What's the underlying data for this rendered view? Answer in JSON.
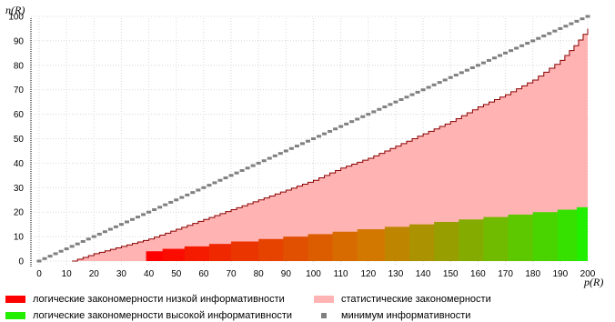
{
  "chart_data": {
    "type": "area",
    "xlabel": "p(R)",
    "ylabel": "n(R)",
    "xlim": [
      0,
      200
    ],
    "ylim": [
      0,
      100
    ],
    "x_ticks": [
      "0",
      "10",
      "20",
      "30",
      "40",
      "50",
      "60",
      "70",
      "80",
      "90",
      "100",
      "110",
      "120",
      "130",
      "140",
      "150",
      "160",
      "170",
      "180",
      "190",
      "200"
    ],
    "y_ticks": [
      "0",
      "10",
      "20",
      "30",
      "40",
      "50",
      "60",
      "70",
      "80",
      "90",
      "100"
    ],
    "grid": true,
    "legend_position": "bottom",
    "series": [
      {
        "name": "минимум информативности",
        "style": "markers",
        "color": "#808080",
        "points": [
          [
            0,
            0
          ],
          [
            200,
            100
          ]
        ]
      },
      {
        "name": "статистические закономерности",
        "style": "step-area",
        "color": "#ffb3b3",
        "edge_color": "#8b0000",
        "x": [
          12,
          20,
          30,
          40,
          50,
          60,
          70,
          80,
          90,
          100,
          110,
          120,
          130,
          140,
          150,
          160,
          170,
          180,
          190,
          195,
          200
        ],
        "upper": [
          0,
          3,
          6,
          9,
          13,
          17,
          21,
          25,
          29,
          33,
          38,
          42,
          47,
          52,
          57,
          63,
          68,
          74,
          82,
          88,
          95
        ]
      },
      {
        "name": "логические закономерности",
        "style": "staircase-bands",
        "color_low": "#ff0000",
        "color_high": "#22ee00",
        "bands": [
          {
            "x_start": 39,
            "x_end": 200,
            "height": 4
          },
          {
            "x_start": 45,
            "x_end": 200,
            "height": 5
          },
          {
            "x_start": 53,
            "x_end": 200,
            "height": 6
          },
          {
            "x_start": 62,
            "x_end": 200,
            "height": 7
          },
          {
            "x_start": 70,
            "x_end": 200,
            "height": 8
          },
          {
            "x_start": 80,
            "x_end": 200,
            "height": 9
          },
          {
            "x_start": 89,
            "x_end": 200,
            "height": 10
          },
          {
            "x_start": 98,
            "x_end": 200,
            "height": 11
          },
          {
            "x_start": 107,
            "x_end": 200,
            "height": 12
          },
          {
            "x_start": 116,
            "x_end": 200,
            "height": 13
          },
          {
            "x_start": 126,
            "x_end": 200,
            "height": 14
          },
          {
            "x_start": 135,
            "x_end": 200,
            "height": 15
          },
          {
            "x_start": 144,
            "x_end": 200,
            "height": 16
          },
          {
            "x_start": 153,
            "x_end": 200,
            "height": 17
          },
          {
            "x_start": 162,
            "x_end": 200,
            "height": 18
          },
          {
            "x_start": 171,
            "x_end": 200,
            "height": 19
          },
          {
            "x_start": 180,
            "x_end": 200,
            "height": 20
          },
          {
            "x_start": 189,
            "x_end": 200,
            "height": 21
          },
          {
            "x_start": 196,
            "x_end": 200,
            "height": 22
          }
        ]
      }
    ],
    "legend": [
      {
        "label": "логические закономерности низкой информативности",
        "color": "#ff0000",
        "marker": "bar"
      },
      {
        "label": "статистические закономерности",
        "color": "#ffb3b3",
        "marker": "bar"
      },
      {
        "label": "логические закономерности высокой информативности",
        "color": "#22ee00",
        "marker": "bar"
      },
      {
        "label": "минимум информативности",
        "color": "#808080",
        "marker": "square"
      }
    ]
  }
}
